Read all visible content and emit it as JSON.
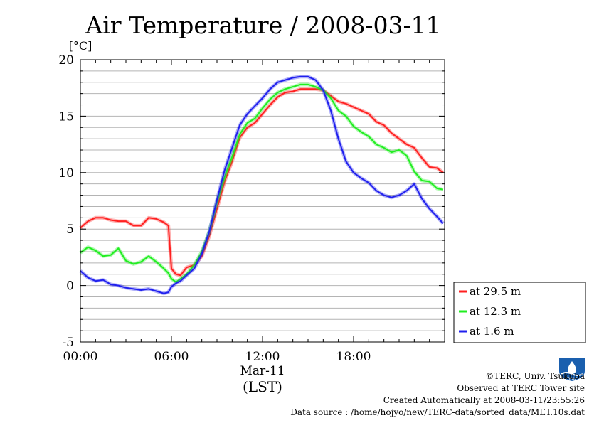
{
  "chart_data": {
    "type": "line",
    "title": "Air Temperature / 2008-03-11",
    "ylabel": "[°C]",
    "xlabel": "(LST)",
    "date_label": "Mar-11",
    "xlim": [
      0,
      24
    ],
    "ylim": [
      -5,
      20
    ],
    "x_ticks": [
      {
        "value": 0,
        "label": "00:00"
      },
      {
        "value": 6,
        "label": "06:00"
      },
      {
        "value": 12,
        "label": "12:00"
      },
      {
        "value": 18,
        "label": "18:00"
      }
    ],
    "y_ticks": [
      {
        "value": -5,
        "label": "-5"
      },
      {
        "value": 0,
        "label": "0"
      },
      {
        "value": 5,
        "label": "5"
      },
      {
        "value": 10,
        "label": "10"
      },
      {
        "value": 15,
        "label": "15"
      },
      {
        "value": 20,
        "label": "20"
      }
    ],
    "grid": "horizontal lines every 1 °C",
    "legend_position": "right, outside plot",
    "x": [
      0,
      0.5,
      1,
      1.5,
      2,
      2.5,
      3,
      3.5,
      4,
      4.5,
      5,
      5.5,
      5.8,
      6,
      6.3,
      6.6,
      7,
      7.5,
      8,
      8.5,
      9,
      9.5,
      10,
      10.5,
      11,
      11.5,
      12,
      12.5,
      13,
      13.5,
      14,
      14.5,
      15,
      15.5,
      16,
      16.5,
      17,
      17.5,
      18,
      18.5,
      19,
      19.5,
      20,
      20.5,
      21,
      21.5,
      22,
      22.5,
      23,
      23.5,
      23.9
    ],
    "series": [
      {
        "name": "at 29.5 m",
        "color": "#ff2020",
        "values": [
          5.1,
          5.7,
          6.0,
          6.0,
          5.8,
          5.7,
          5.7,
          5.3,
          5.3,
          6.0,
          5.9,
          5.6,
          5.3,
          1.5,
          1.0,
          0.9,
          1.6,
          1.8,
          2.6,
          4.4,
          6.8,
          9.2,
          11.0,
          13.1,
          14.0,
          14.4,
          15.2,
          16.0,
          16.7,
          17.1,
          17.2,
          17.4,
          17.4,
          17.4,
          17.3,
          16.8,
          16.3,
          16.1,
          15.8,
          15.5,
          15.2,
          14.5,
          14.2,
          13.5,
          13.0,
          12.5,
          12.2,
          11.3,
          10.5,
          10.4,
          10.0
        ]
      },
      {
        "name": "at 12.3 m",
        "color": "#20ee20",
        "values": [
          2.9,
          3.4,
          3.1,
          2.6,
          2.7,
          3.3,
          2.2,
          1.9,
          2.1,
          2.6,
          2.1,
          1.5,
          1.1,
          0.6,
          0.3,
          0.6,
          1.0,
          1.8,
          3.0,
          4.8,
          7.4,
          9.6,
          11.4,
          13.4,
          14.4,
          14.8,
          15.7,
          16.5,
          17.1,
          17.4,
          17.6,
          17.8,
          17.8,
          17.6,
          17.3,
          16.6,
          15.5,
          15.0,
          14.1,
          13.6,
          13.2,
          12.5,
          12.2,
          11.8,
          12.0,
          11.5,
          10.1,
          9.3,
          9.2,
          8.6,
          8.5
        ]
      },
      {
        "name": "at 1.6 m",
        "color": "#2020ee",
        "values": [
          1.3,
          0.7,
          0.4,
          0.5,
          0.1,
          0.0,
          -0.2,
          -0.3,
          -0.4,
          -0.3,
          -0.5,
          -0.7,
          -0.6,
          -0.1,
          0.2,
          0.4,
          0.9,
          1.5,
          2.8,
          4.8,
          7.6,
          10.2,
          12.2,
          14.2,
          15.2,
          15.9,
          16.6,
          17.4,
          18.0,
          18.2,
          18.4,
          18.5,
          18.5,
          18.2,
          17.3,
          15.5,
          13.0,
          11.0,
          10.0,
          9.5,
          9.1,
          8.4,
          8.0,
          7.8,
          8.0,
          8.4,
          9.0,
          7.7,
          6.8,
          6.1,
          5.5
        ]
      }
    ]
  },
  "credits": {
    "copyright": "©TERC, Univ. Tsukuba",
    "site": "Observed at TERC Tower site",
    "created": "Created Automatically at 2008-03-11/23:55:26",
    "source": "Data source : /home/hojyo/new/TERC-data/sorted_data/MET.10s.dat",
    "logo_text": "TERC"
  }
}
